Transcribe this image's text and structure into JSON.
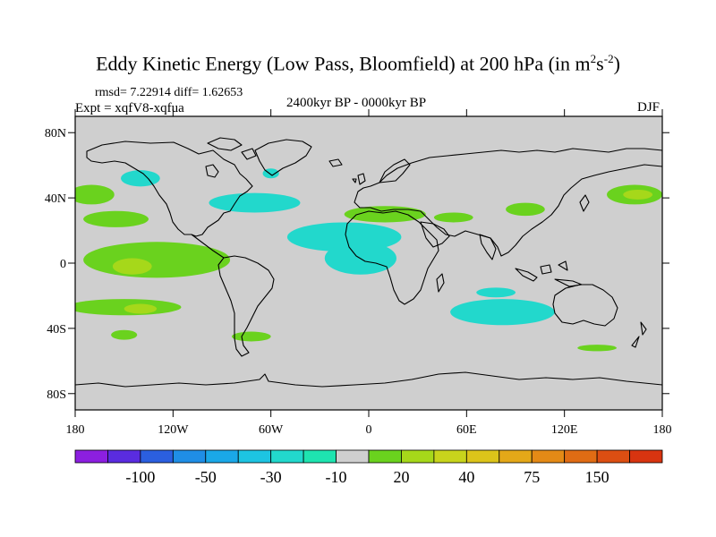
{
  "figure": {
    "title_main": "Eddy Kinetic Energy (Low Pass, Bloomfield) at 200 hPa (in m",
    "title_sup1": "2",
    "title_mid": "s",
    "title_sup2": "-2",
    "title_end": ")",
    "stats": "rmsd= 7.22914  diff= 1.62653",
    "experiment": "Expt = xqfV8-xqfua",
    "period": "2400kyr BP - 0000kyr BP",
    "season": "DJF"
  },
  "chart_data": {
    "type": "heatmap",
    "projection": "cylindrical-equidistant",
    "variable": "Eddy kinetic energy difference at 200 hPa",
    "units": "m2 s-2",
    "x": {
      "range": [
        -180,
        180
      ],
      "ticks": [
        -180,
        -120,
        -60,
        0,
        60,
        120,
        180
      ],
      "tick_labels": [
        "180",
        "120W",
        "60W",
        "0",
        "60E",
        "120E",
        "180"
      ]
    },
    "y": {
      "range": [
        -90,
        90
      ],
      "ticks": [
        80,
        40,
        0,
        -40,
        -80
      ],
      "tick_labels": [
        "80N",
        "40N",
        "0",
        "40S",
        "80S"
      ]
    },
    "background_color": "#cfcfcf",
    "colorbar": {
      "colors": [
        "#8c1fe0",
        "#5a2ce0",
        "#2b5fe0",
        "#1f8ee6",
        "#1aa8e8",
        "#1dc4e2",
        "#22d8cc",
        "#1ee4b0",
        "#cfcfcf",
        "#6ad21e",
        "#a6d81a",
        "#c8d41c",
        "#dcc41a",
        "#e4a818",
        "#e48a16",
        "#e06c14",
        "#dc4e12",
        "#d83410"
      ],
      "labels": [
        "-100",
        "-50",
        "-30",
        "-10",
        "20",
        "40",
        "75",
        "150"
      ],
      "label_boxes": [
        1,
        3,
        5,
        7,
        9,
        11,
        13,
        15
      ]
    },
    "anomaly_regions": [
      {
        "name": "north-pacific-positive-west",
        "color": "#6ad21e",
        "lon": -170,
        "lat": 42,
        "rlon": 14,
        "rlat": 6
      },
      {
        "name": "north-pacific-positive-east",
        "color": "#6ad21e",
        "lon": 163,
        "lat": 42,
        "rlon": 17,
        "rlat": 6
      },
      {
        "name": "north-pacific-core",
        "color": "#a6d81a",
        "lon": 165,
        "lat": 42,
        "rlon": 9,
        "rlat": 3
      },
      {
        "name": "subtropical-pacific-positive",
        "color": "#6ad21e",
        "lon": -155,
        "lat": 27,
        "rlon": 20,
        "rlat": 5
      },
      {
        "name": "mid-atlantic-positive",
        "color": "#6ad21e",
        "lon": 10,
        "lat": 30,
        "rlon": 25,
        "rlat": 5
      },
      {
        "name": "east-med-positive",
        "color": "#6ad21e",
        "lon": 52,
        "lat": 28,
        "rlon": 12,
        "rlat": 3
      },
      {
        "name": "china-positive",
        "color": "#6ad21e",
        "lon": 96,
        "lat": 33,
        "rlon": 12,
        "rlat": 4
      },
      {
        "name": "tropical-pacific-positive",
        "color": "#6ad21e",
        "lon": -130,
        "lat": 2,
        "rlon": 45,
        "rlat": 11
      },
      {
        "name": "tropical-pacific-core",
        "color": "#a6d81a",
        "lon": -145,
        "lat": -2,
        "rlon": 12,
        "rlat": 5
      },
      {
        "name": "south-pacific-positive",
        "color": "#6ad21e",
        "lon": -150,
        "lat": -27,
        "rlon": 35,
        "rlat": 5
      },
      {
        "name": "south-pacific-core",
        "color": "#a6d81a",
        "lon": -140,
        "lat": -28,
        "rlon": 10,
        "rlat": 3
      },
      {
        "name": "southeast-pacific-positive",
        "color": "#6ad21e",
        "lon": -150,
        "lat": -44,
        "rlon": 8,
        "rlat": 3
      },
      {
        "name": "drake-passage-positive",
        "color": "#6ad21e",
        "lon": -72,
        "lat": -45,
        "rlon": 12,
        "rlat": 3
      },
      {
        "name": "southern-ocean-positive",
        "color": "#6ad21e",
        "lon": 140,
        "lat": -52,
        "rlon": 12,
        "rlat": 2
      },
      {
        "name": "north-pacific-negative",
        "color": "#22d8cc",
        "lon": -140,
        "lat": 52,
        "rlon": 12,
        "rlat": 5
      },
      {
        "name": "north-atlantic-negative",
        "color": "#22d8cc",
        "lon": -70,
        "lat": 37,
        "rlon": 28,
        "rlat": 6
      },
      {
        "name": "north-africa-negative",
        "color": "#22d8cc",
        "lon": -15,
        "lat": 16,
        "rlon": 35,
        "rlat": 9
      },
      {
        "name": "tropical-atlantic-negative",
        "color": "#22d8cc",
        "lon": -5,
        "lat": 3,
        "rlon": 22,
        "rlat": 10
      },
      {
        "name": "indian-ocean-negative",
        "color": "#22d8cc",
        "lon": 82,
        "lat": -30,
        "rlon": 32,
        "rlat": 8
      },
      {
        "name": "southern-indian-negative",
        "color": "#22d8cc",
        "lon": 78,
        "lat": -18,
        "rlon": 12,
        "rlat": 3
      },
      {
        "name": "north-atlantic-high-negative",
        "color": "#22d8cc",
        "lon": -60,
        "lat": 55,
        "rlon": 5,
        "rlat": 3
      }
    ]
  }
}
